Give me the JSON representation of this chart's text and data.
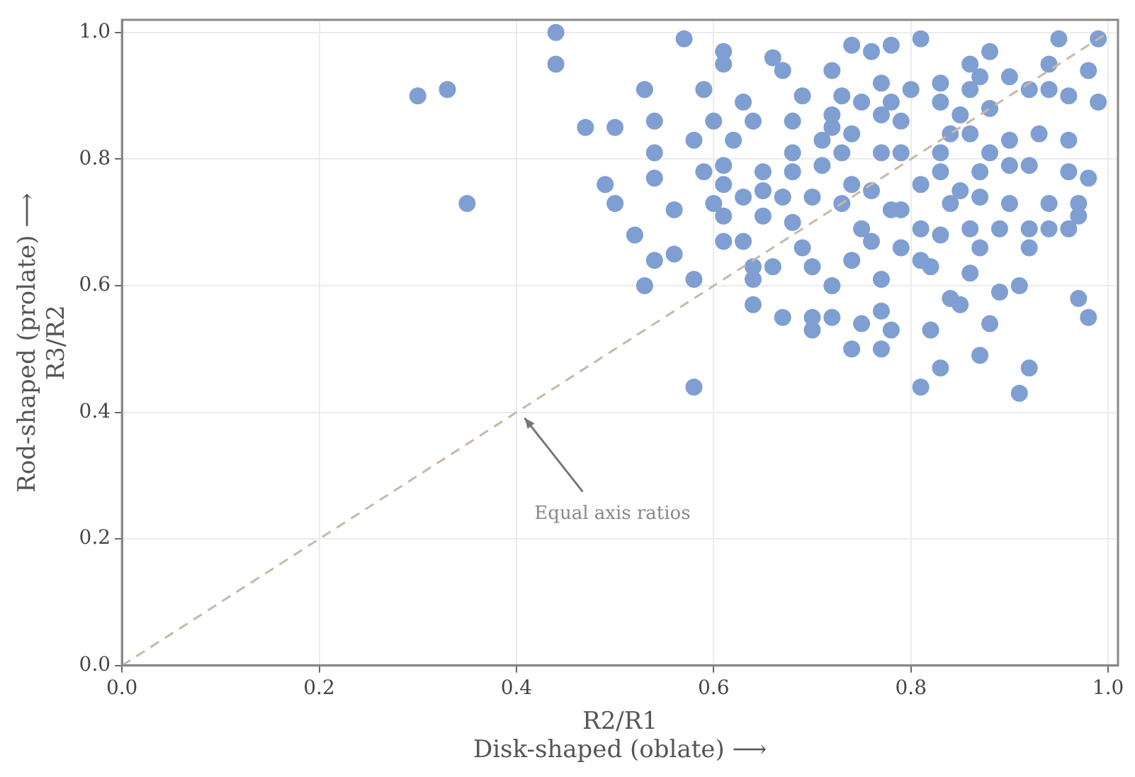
{
  "chart_data": {
    "type": "scatter",
    "xlabel": "R2/R1\nDisk-shaped (oblate) ⟶",
    "ylabel": "Rod-shaped (prolate) ⟶\nR3/R2",
    "xlim": [
      0,
      1.01
    ],
    "ylim": [
      0,
      1.02
    ],
    "xticks": [
      {
        "value": 0,
        "label": "0.0"
      },
      0.2,
      0.4,
      0.6,
      0.8,
      {
        "value": 1,
        "label": "1.0"
      }
    ],
    "yticks": [
      {
        "value": 0,
        "label": "0.0"
      },
      0.2,
      0.4,
      0.6,
      0.8,
      {
        "value": 1,
        "label": "1.0"
      }
    ],
    "grid": true,
    "legend": false,
    "marker": "circle",
    "annotations": [
      "Equal axis ratios"
    ],
    "series": [
      {
        "color": "#7f9fd2",
        "x": [
          0.3,
          0.33,
          0.35,
          0.44,
          0.44,
          0.47,
          0.5,
          0.49,
          0.5,
          0.52,
          0.53,
          0.54,
          0.56,
          0.58,
          0.58,
          0.53,
          0.54,
          0.54,
          0.54,
          0.56,
          0.57,
          0.59,
          0.58,
          0.59,
          0.61,
          0.61,
          0.6,
          0.61,
          0.6,
          0.61,
          0.63,
          0.64,
          0.64,
          0.64,
          0.66,
          0.65,
          0.66,
          0.67,
          0.67,
          0.69,
          0.68,
          0.69,
          0.7,
          0.7,
          0.7,
          0.72,
          0.72,
          0.72,
          0.73,
          0.74,
          0.74,
          0.76,
          0.75,
          0.77,
          0.77,
          0.78,
          0.78,
          0.81,
          0.81,
          0.82,
          0.83,
          0.84,
          0.85,
          0.87,
          0.88,
          0.88,
          0.89,
          0.91,
          0.91,
          0.92,
          0.92,
          0.94,
          0.96,
          0.96,
          0.96,
          0.97,
          0.98,
          0.98,
          0.98,
          0.99,
          0.99,
          0.95,
          0.94,
          0.92,
          0.9,
          0.89,
          0.9,
          0.87,
          0.86,
          0.85,
          0.86,
          0.86,
          0.85,
          0.88,
          0.83,
          0.81,
          0.82,
          0.83,
          0.79,
          0.79,
          0.8,
          0.79,
          0.77,
          0.76,
          0.75,
          0.74,
          0.76,
          0.73,
          0.72,
          0.71,
          0.71,
          0.74,
          0.7,
          0.68,
          0.67,
          0.65,
          0.65,
          0.63,
          0.62,
          0.64,
          0.63,
          0.61,
          0.61,
          0.68,
          0.68,
          0.74,
          0.77,
          0.79,
          0.83,
          0.84,
          0.87,
          0.88,
          0.9,
          0.9,
          0.92,
          0.93,
          0.87,
          0.86,
          0.83,
          0.83,
          0.77,
          0.78,
          0.75,
          0.72,
          0.73,
          0.78,
          0.81,
          0.84,
          0.77,
          0.81,
          0.86,
          0.87,
          0.94,
          0.96,
          0.94,
          0.97,
          0.97,
          0.92
        ],
        "values": [
          0.9,
          0.91,
          0.73,
          1.0,
          0.95,
          0.85,
          0.85,
          0.76,
          0.73,
          0.68,
          0.6,
          0.64,
          0.65,
          0.44,
          0.61,
          0.91,
          0.86,
          0.81,
          0.77,
          0.72,
          0.99,
          0.91,
          0.83,
          0.78,
          0.97,
          0.95,
          0.86,
          0.79,
          0.73,
          0.67,
          0.67,
          0.63,
          0.57,
          0.61,
          0.63,
          0.78,
          0.96,
          0.94,
          0.55,
          0.66,
          0.86,
          0.9,
          0.63,
          0.55,
          0.53,
          0.6,
          0.55,
          0.94,
          0.9,
          0.98,
          0.5,
          0.97,
          0.54,
          0.56,
          0.5,
          0.53,
          0.98,
          0.99,
          0.44,
          0.53,
          0.47,
          0.58,
          0.57,
          0.49,
          0.54,
          0.97,
          0.59,
          0.43,
          0.6,
          0.47,
          0.66,
          0.69,
          0.69,
          0.83,
          0.78,
          0.58,
          0.94,
          0.77,
          0.55,
          0.99,
          0.89,
          0.99,
          0.95,
          0.91,
          0.93,
          0.69,
          0.73,
          0.66,
          0.69,
          0.75,
          0.84,
          0.91,
          0.87,
          0.88,
          0.81,
          0.76,
          0.63,
          0.68,
          0.72,
          0.66,
          0.91,
          0.86,
          0.81,
          0.75,
          0.69,
          0.64,
          0.67,
          0.81,
          0.85,
          0.79,
          0.83,
          0.84,
          0.74,
          0.7,
          0.74,
          0.75,
          0.71,
          0.89,
          0.83,
          0.86,
          0.74,
          0.71,
          0.76,
          0.81,
          0.78,
          0.76,
          0.87,
          0.81,
          0.78,
          0.84,
          0.78,
          0.81,
          0.83,
          0.79,
          0.79,
          0.84,
          0.93,
          0.95,
          0.92,
          0.89,
          0.92,
          0.89,
          0.89,
          0.87,
          0.73,
          0.72,
          0.69,
          0.73,
          0.61,
          0.64,
          0.62,
          0.74,
          0.91,
          0.9,
          0.73,
          0.71,
          0.73,
          0.69
        ]
      },
      {
        "type": "line",
        "color": "#c9b8a6",
        "line_style": "dashed",
        "marker": "none",
        "x": [
          0,
          1
        ],
        "values": [
          0,
          1
        ]
      }
    ]
  }
}
